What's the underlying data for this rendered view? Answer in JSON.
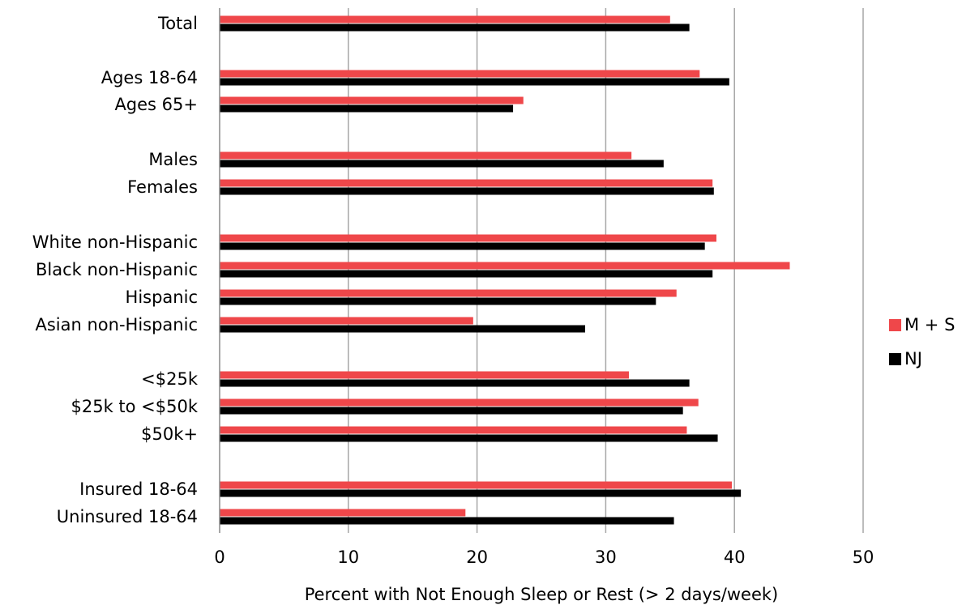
{
  "chart_data": {
    "type": "bar",
    "orientation": "horizontal",
    "title": "",
    "xlabel": "Percent with Not Enough Sleep or Rest (> 2 days/week)",
    "ylabel": "",
    "xlim": [
      0,
      50
    ],
    "x_ticks": [
      "0",
      "10",
      "20",
      "30",
      "40",
      "50"
    ],
    "grid": "vertical",
    "legend_position": "right",
    "categories": [
      "Total",
      "Ages 18-64",
      "Ages 65+",
      "Males",
      "Females",
      "White non-Hispanic",
      "Black non-Hispanic",
      "Hispanic",
      "Asian non-Hispanic",
      "<$25k",
      "$25k to <$50k",
      "$50k+",
      "Insured 18-64",
      "Uninsured 18-64"
    ],
    "series": [
      {
        "name": "M + S",
        "color": "#ef474a",
        "values": [
          35.0,
          37.3,
          23.6,
          32.0,
          38.3,
          38.6,
          44.3,
          35.5,
          19.7,
          31.8,
          37.2,
          36.3,
          39.8,
          19.1
        ]
      },
      {
        "name": "NJ",
        "color": "#000000",
        "values": [
          36.5,
          39.6,
          22.8,
          34.5,
          38.4,
          37.7,
          38.3,
          33.9,
          28.4,
          36.5,
          36.0,
          38.7,
          40.5,
          35.3
        ]
      }
    ]
  }
}
